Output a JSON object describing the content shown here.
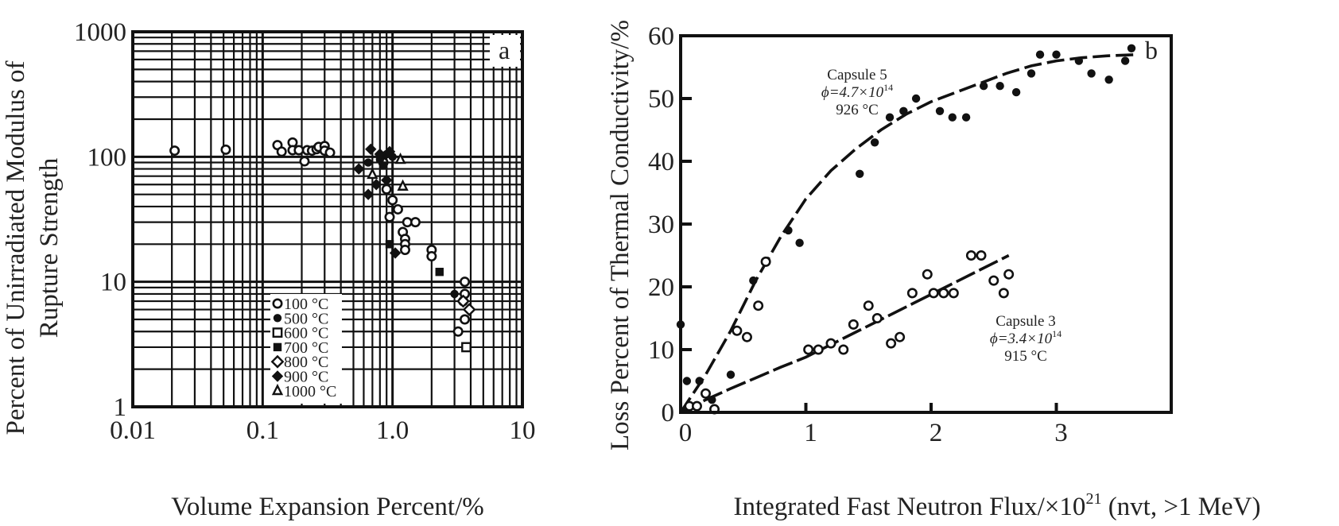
{
  "chart_data": [
    {
      "type": "scatter",
      "panel_label": "a",
      "xlabel": "Volume Expansion Percent/%",
      "ylabel_lines": [
        "Percent of Unirradiated Modulus of",
        "Rupture Strength"
      ],
      "xscale": "log",
      "yscale": "log",
      "xlim": [
        0.01,
        10
      ],
      "ylim": [
        1,
        1000
      ],
      "xticks": [
        0.01,
        0.1,
        1.0,
        10
      ],
      "xtick_labels": [
        "0.01",
        "0.1",
        "1.0",
        "10"
      ],
      "yticks": [
        1,
        10,
        100,
        1000
      ],
      "ytick_labels": [
        "1",
        "10",
        "100",
        "1000"
      ],
      "grid": true,
      "legend_position": "bottom-center",
      "series": [
        {
          "name": "100 °C",
          "marker": "open-circle",
          "points": [
            [
              0.021,
              112
            ],
            [
              0.052,
              114
            ],
            [
              0.13,
              124
            ],
            [
              0.14,
              110
            ],
            [
              0.17,
              130
            ],
            [
              0.17,
              113
            ],
            [
              0.19,
              113
            ],
            [
              0.21,
              92
            ],
            [
              0.22,
              113
            ],
            [
              0.24,
              112
            ],
            [
              0.26,
              115
            ],
            [
              0.27,
              120
            ],
            [
              0.3,
              122
            ],
            [
              0.3,
              112
            ],
            [
              0.33,
              108
            ],
            [
              0.85,
              90
            ],
            [
              0.9,
              55
            ],
            [
              0.95,
              33
            ],
            [
              1.0,
              45
            ],
            [
              1.1,
              38
            ],
            [
              1.3,
              30
            ],
            [
              1.2,
              25
            ],
            [
              1.25,
              22
            ],
            [
              1.25,
              20
            ],
            [
              1.25,
              18
            ],
            [
              1.5,
              30
            ],
            [
              2.0,
              18
            ],
            [
              2.0,
              16
            ],
            [
              3.6,
              10
            ],
            [
              3.6,
              8
            ],
            [
              3.5,
              7
            ],
            [
              3.6,
              5
            ],
            [
              3.2,
              4
            ]
          ]
        },
        {
          "name": "500 °C",
          "marker": "filled-circle",
          "points": [
            [
              0.65,
              90
            ],
            [
              0.8,
              95
            ],
            [
              0.9,
              105
            ],
            [
              1.0,
              100
            ],
            [
              3.0,
              8
            ]
          ]
        },
        {
          "name": "600 °C",
          "marker": "open-square",
          "points": [
            [
              3.7,
              3
            ]
          ]
        },
        {
          "name": "700 °C",
          "marker": "filled-square",
          "points": [
            [
              0.95,
              20
            ],
            [
              0.85,
              85
            ],
            [
              2.3,
              12
            ]
          ]
        },
        {
          "name": "800 °C",
          "marker": "open-diamond",
          "points": [
            [
              3.5,
              7
            ],
            [
              3.9,
              6
            ]
          ]
        },
        {
          "name": "900 °C",
          "marker": "filled-diamond",
          "points": [
            [
              0.55,
              80
            ],
            [
              0.65,
              50
            ],
            [
              0.75,
              60
            ],
            [
              0.9,
              65
            ],
            [
              0.95,
              110
            ],
            [
              1.05,
              17
            ],
            [
              0.68,
              115
            ],
            [
              0.8,
              105
            ]
          ]
        },
        {
          "name": "1000 °C",
          "marker": "open-triangle",
          "points": [
            [
              0.7,
              72
            ],
            [
              1.2,
              58
            ],
            [
              1.15,
              95
            ]
          ]
        }
      ],
      "legend": [
        "100 °C",
        "500 °C",
        "600 °C",
        "700 °C",
        "800 °C",
        "900 °C",
        "1000 °C"
      ]
    },
    {
      "type": "scatter",
      "panel_label": "b",
      "xlabel": "Integrated Fast Neutron Flux/×10",
      "xlabel_sup": "21",
      "xlabel_suffix": " (nvt, >1 MeV)",
      "ylabel": "Loss Percent of Thermal Conductivity/%",
      "xlim": [
        0,
        3.9
      ],
      "ylim": [
        0,
        60
      ],
      "xticks": [
        0,
        1,
        2,
        3
      ],
      "xtick_labels": [
        "0",
        "1",
        "2",
        "3"
      ],
      "yticks": [
        0,
        10,
        20,
        30,
        40,
        50,
        60
      ],
      "ytick_labels": [
        "0",
        "10",
        "20",
        "30",
        "40",
        "50",
        "60"
      ],
      "grid": false,
      "series": [
        {
          "name": "Capsule 5",
          "annotation": [
            "Capsule 5",
            "ϕ=4.7×10",
            "14",
            "926 °C"
          ],
          "marker": "filled-circle",
          "points": [
            [
              0.0,
              14
            ],
            [
              0.05,
              5
            ],
            [
              0.15,
              5
            ],
            [
              0.25,
              2
            ],
            [
              0.4,
              6
            ],
            [
              0.58,
              21
            ],
            [
              0.68,
              24
            ],
            [
              0.86,
              29
            ],
            [
              0.95,
              27
            ],
            [
              1.43,
              38
            ],
            [
              1.55,
              43
            ],
            [
              1.67,
              47
            ],
            [
              1.78,
              48
            ],
            [
              1.88,
              50
            ],
            [
              2.07,
              48
            ],
            [
              2.17,
              47
            ],
            [
              2.28,
              47
            ],
            [
              2.42,
              52
            ],
            [
              2.55,
              52
            ],
            [
              2.68,
              51
            ],
            [
              2.8,
              54
            ],
            [
              2.87,
              57
            ],
            [
              3.0,
              57
            ],
            [
              3.18,
              56
            ],
            [
              3.28,
              54
            ],
            [
              3.42,
              53
            ],
            [
              3.55,
              56
            ],
            [
              3.6,
              58
            ]
          ],
          "fit_curve": [
            [
              0.0,
              0
            ],
            [
              0.2,
              6
            ],
            [
              0.4,
              13
            ],
            [
              0.6,
              21
            ],
            [
              0.8,
              28
            ],
            [
              1.0,
              34
            ],
            [
              1.2,
              38.5
            ],
            [
              1.4,
              42
            ],
            [
              1.6,
              45
            ],
            [
              1.8,
              47.5
            ],
            [
              2.0,
              49.5
            ],
            [
              2.2,
              51
            ],
            [
              2.4,
              52.5
            ],
            [
              2.6,
              54
            ],
            [
              2.8,
              55.2
            ],
            [
              3.0,
              56
            ],
            [
              3.2,
              56.5
            ],
            [
              3.4,
              56.8
            ],
            [
              3.65,
              57
            ]
          ]
        },
        {
          "name": "Capsule 3",
          "annotation": [
            "Capsule 3",
            "ϕ=3.4×10",
            "14",
            "915 °C"
          ],
          "marker": "open-circle",
          "points": [
            [
              0.07,
              1
            ],
            [
              0.13,
              1
            ],
            [
              0.2,
              3
            ],
            [
              0.27,
              0.5
            ],
            [
              0.45,
              13
            ],
            [
              0.53,
              12
            ],
            [
              0.62,
              17
            ],
            [
              0.68,
              24
            ],
            [
              1.02,
              10
            ],
            [
              1.1,
              10
            ],
            [
              1.2,
              11
            ],
            [
              1.3,
              10
            ],
            [
              1.38,
              14
            ],
            [
              1.5,
              17
            ],
            [
              1.57,
              15
            ],
            [
              1.68,
              11
            ],
            [
              1.75,
              12
            ],
            [
              1.85,
              19
            ],
            [
              1.97,
              22
            ],
            [
              2.02,
              19
            ],
            [
              2.1,
              19
            ],
            [
              2.18,
              19
            ],
            [
              2.32,
              25
            ],
            [
              2.4,
              25
            ],
            [
              2.5,
              21
            ],
            [
              2.58,
              19
            ],
            [
              2.62,
              22
            ]
          ],
          "fit_curve": [
            [
              0.0,
              0
            ],
            [
              0.2,
              2
            ],
            [
              0.4,
              3.8
            ],
            [
              0.6,
              5.5
            ],
            [
              0.8,
              7.2
            ],
            [
              1.0,
              8.8
            ],
            [
              1.2,
              10.8
            ],
            [
              1.4,
              12.8
            ],
            [
              1.6,
              14.8
            ],
            [
              1.8,
              16.8
            ],
            [
              2.0,
              18.8
            ],
            [
              2.2,
              20.8
            ],
            [
              2.4,
              22.8
            ],
            [
              2.62,
              25
            ]
          ]
        }
      ]
    }
  ]
}
